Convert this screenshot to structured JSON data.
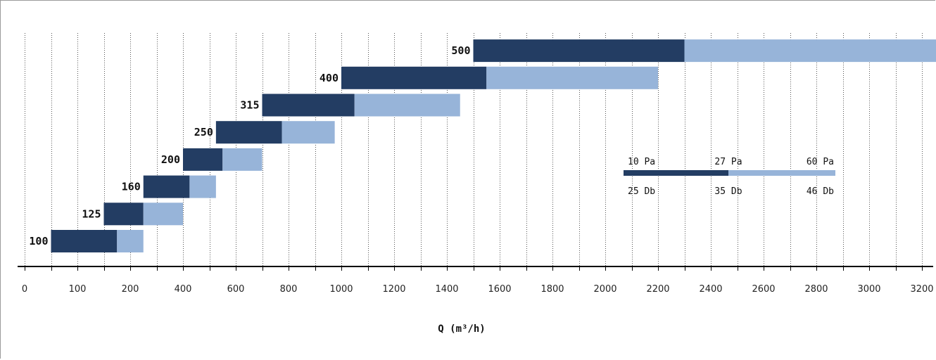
{
  "chart_data": {
    "type": "bar",
    "orientation": "horizontal-range",
    "title": "",
    "xlabel": "Q (m³/h)",
    "ylabel": "",
    "xlim": [
      0,
      3200
    ],
    "x_ticks": [
      0,
      100,
      200,
      400,
      600,
      800,
      1000,
      1200,
      1400,
      1600,
      1800,
      2000,
      2200,
      2400,
      2600,
      2800,
      3000,
      3200
    ],
    "grid": "vertical dotted",
    "colors": {
      "dark": "#233d63",
      "light": "#97b4d9",
      "axis": "#000000",
      "grid": "#555555"
    },
    "bars": [
      {
        "label": "100",
        "start": 50,
        "mid": 175,
        "end": 250
      },
      {
        "label": "125",
        "start": 150,
        "mid": 250,
        "end": 400
      },
      {
        "label": "160",
        "start": 250,
        "mid": 425,
        "end": 525
      },
      {
        "label": "200",
        "start": 400,
        "mid": 550,
        "end": 700
      },
      {
        "label": "250",
        "start": 525,
        "mid": 775,
        "end": 975
      },
      {
        "label": "315",
        "start": 700,
        "mid": 1050,
        "end": 1450
      },
      {
        "label": "400",
        "start": 1000,
        "mid": 1550,
        "end": 2200
      },
      {
        "label": "500",
        "start": 1500,
        "mid": 2300,
        "end": 3350
      }
    ],
    "legend": {
      "placement": "center-right",
      "top": [
        "10 Pa",
        "27 Pa",
        "60 Pa"
      ],
      "bottom": [
        "25 Db",
        "35 Db",
        "46 Db"
      ]
    }
  }
}
